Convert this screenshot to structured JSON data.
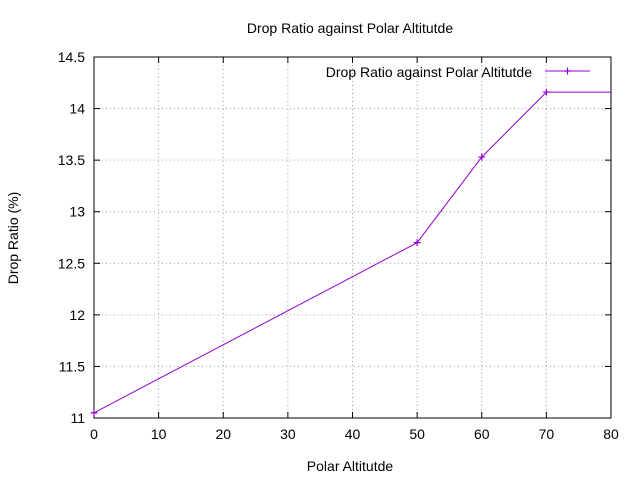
{
  "chart_data": {
    "type": "line",
    "title": "Drop Ratio against Polar Altitutde",
    "xlabel": "Polar Altitutde",
    "ylabel": "Drop Ratio (%)",
    "xlim": [
      0,
      80
    ],
    "ylim": [
      11,
      14.5
    ],
    "xticks": [
      "0",
      "10",
      "20",
      "30",
      "40",
      "50",
      "60",
      "70",
      "80"
    ],
    "yticks": [
      "11",
      "11.5",
      "12",
      "12.5",
      "13",
      "13.5",
      "14",
      "14.5"
    ],
    "grid": true,
    "legend_position": "top-right",
    "series": [
      {
        "name": "Drop Ratio against Polar Altitutde",
        "color": "#9400d3",
        "marker": "plus",
        "x": [
          0,
          50,
          60,
          70,
          80
        ],
        "y": [
          11.05,
          12.7,
          13.53,
          14.16,
          14.16
        ]
      }
    ]
  }
}
